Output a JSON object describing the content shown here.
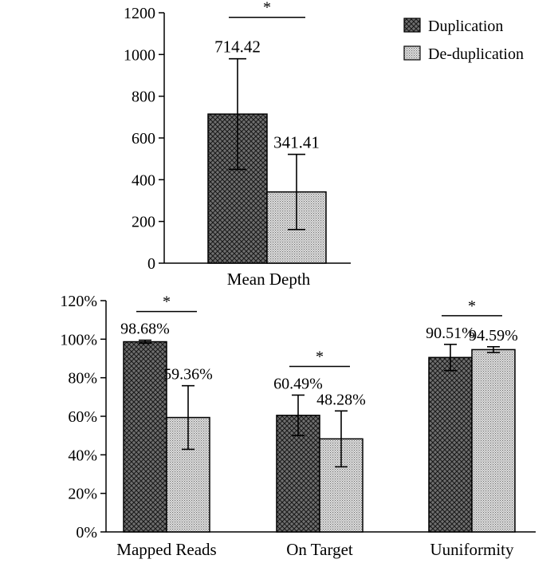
{
  "chart_data": [
    {
      "type": "bar",
      "title": "",
      "categories": [
        "Mean Depth"
      ],
      "series": [
        {
          "name": "Duplication",
          "values": [
            714.42
          ],
          "errors": [
            265
          ]
        },
        {
          "name": "De-duplication",
          "values": [
            341.41
          ],
          "errors": [
            180
          ]
        }
      ],
      "data_labels": [
        [
          "714.42"
        ],
        [
          "341.41"
        ]
      ],
      "significance": [
        "*"
      ],
      "ylim": [
        0,
        1200
      ],
      "yticks": [
        0,
        200,
        400,
        600,
        800,
        1000,
        1200
      ],
      "ytick_labels": [
        "0",
        "200",
        "400",
        "600",
        "800",
        "1000",
        "1200"
      ],
      "xlabel": "",
      "ylabel": "",
      "legend": {
        "position": "top-right",
        "entries": [
          "Duplication",
          "De-duplication"
        ]
      }
    },
    {
      "type": "bar",
      "title": "",
      "categories": [
        "Mapped Reads",
        "On Target",
        "Uuniformity"
      ],
      "series": [
        {
          "name": "Duplication",
          "values": [
            98.68,
            60.49,
            90.51
          ],
          "errors": [
            0.8,
            10.5,
            6.8
          ]
        },
        {
          "name": "De-duplication",
          "values": [
            59.36,
            48.28,
            94.59
          ],
          "errors": [
            16.5,
            14.5,
            1.5
          ]
        }
      ],
      "data_labels": [
        [
          "98.68%",
          "60.49%",
          "90.51%"
        ],
        [
          "59.36%",
          "48.28%",
          "94.59%"
        ]
      ],
      "significance": [
        "*",
        "*",
        "*"
      ],
      "ylim": [
        0,
        120
      ],
      "yticks": [
        0,
        20,
        40,
        60,
        80,
        100,
        120
      ],
      "ytick_labels": [
        "0%",
        "20%",
        "40%",
        "60%",
        "80%",
        "100%",
        "120%"
      ],
      "xlabel": "",
      "ylabel": ""
    }
  ],
  "colors": {
    "duplication_fill": "#6a6a6a",
    "deduplication_fill": "#c8c8c8",
    "ink": "#000000",
    "background": "#ffffff"
  }
}
